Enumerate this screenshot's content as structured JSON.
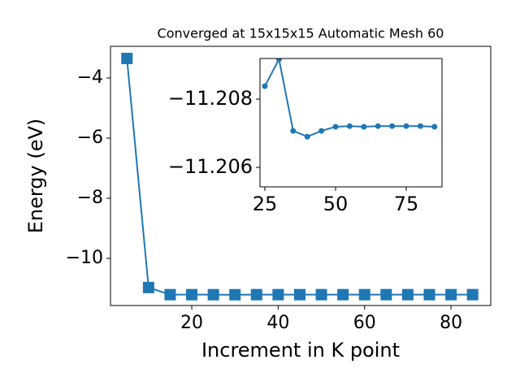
{
  "chart_data": [
    {
      "type": "line",
      "title": "Converged at 15x15x15 Automatic Mesh 60",
      "x_label": "Increment in K point",
      "y_label": "Energy (eV)",
      "xlim": [
        1.19,
        89.2
      ],
      "ylim": [
        -11.568,
        -2.946
      ],
      "xticks": [
        20,
        40,
        60,
        80
      ],
      "yticks": [
        {
          "value": -4,
          "label": "−4"
        },
        {
          "value": -6,
          "label": "−6"
        },
        {
          "value": -8,
          "label": "−8"
        },
        {
          "value": -10,
          "label": "−10"
        }
      ],
      "marker": "square",
      "series": [
        {
          "color": "#1f77b4",
          "x": [
            5,
            10,
            15,
            20,
            25,
            30,
            35,
            40,
            45,
            50,
            55,
            60,
            65,
            70,
            75,
            80,
            85
          ],
          "values": [
            -3.35,
            -10.97,
            -11.207,
            -11.207,
            -11.2084,
            -11.2092,
            -11.2071,
            -11.2069,
            -11.2071,
            -11.2072,
            -11.2072,
            -11.2072,
            -11.2072,
            -11.2072,
            -11.2072,
            -11.2072,
            -11.2072
          ]
        }
      ]
    },
    {
      "type": "line",
      "xlim": [
        23.28,
        87.64
      ],
      "ylim": [
        -11.20919,
        -11.20543
      ],
      "y_inverted": true,
      "xticks": [
        25,
        50,
        75
      ],
      "yticks": [
        {
          "value": -11.208,
          "label": "−11.208"
        },
        {
          "value": -11.206,
          "label": "−11.206"
        }
      ],
      "marker": "circle",
      "series": [
        {
          "color": "#1f77b4",
          "x": [
            25,
            30,
            35,
            40,
            45,
            50,
            55,
            60,
            65,
            70,
            75,
            80,
            85
          ],
          "values": [
            -11.20838,
            -11.20917,
            -11.20707,
            -11.2069,
            -11.20707,
            -11.20719,
            -11.20721,
            -11.20719,
            -11.20721,
            -11.20721,
            -11.20721,
            -11.20721,
            -11.20719
          ]
        }
      ]
    }
  ]
}
